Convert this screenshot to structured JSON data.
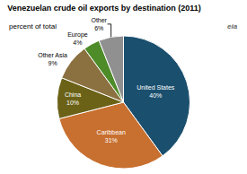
{
  "chart_data": {
    "type": "pie",
    "title": "Venezuelan crude oil exports by destination (2011)",
    "subtitle": "percent of total",
    "annotations": [
      "eia"
    ],
    "categories": [
      "United States",
      "Caribbean",
      "China",
      "Other Asia",
      "Europe",
      "Other"
    ],
    "values": [
      40,
      31,
      10,
      9,
      4,
      6
    ],
    "value_labels": [
      "40%",
      "31%",
      "10%",
      "9%",
      "4%",
      "6%"
    ],
    "data_labels": true,
    "colors": [
      "#1a4f6e",
      "#c87030",
      "#6b6218",
      "#8b7040",
      "#4e8c2a",
      "#909090"
    ]
  }
}
